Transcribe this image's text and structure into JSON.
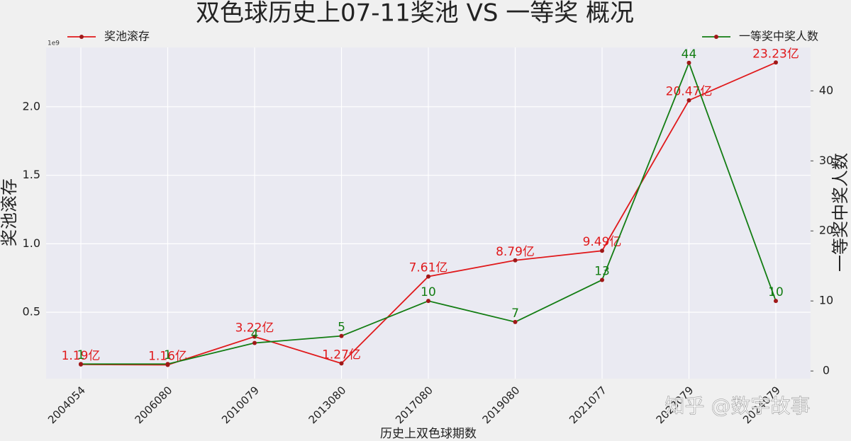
{
  "chart_data": {
    "type": "line",
    "title": "双色球历史上07-11奖池 VS 一等奖 概况",
    "xlabel": "历史上双色球期数",
    "ylabel": "奖池滚存",
    "y2label": "一等奖中奖人数",
    "y_offset_label": "1e9",
    "watermark": "知乎 @数字故事",
    "categories": [
      "2004054",
      "2006080",
      "2010079",
      "2013080",
      "2017080",
      "2019080",
      "2021077",
      "2023079",
      "2024079"
    ],
    "series": [
      {
        "name": "奖池滚存",
        "color": "#e0191b",
        "marker_color": "#a01818",
        "axis": "y",
        "values": [
          0.119,
          0.116,
          0.322,
          0.127,
          0.761,
          0.879,
          0.949,
          2.047,
          2.323
        ],
        "value_labels": [
          "1.19亿",
          "1.16亿",
          "3.22亿",
          "1.27亿",
          "7.61亿",
          "8.79亿",
          "9.49亿",
          "20.47亿",
          "23.23亿"
        ]
      },
      {
        "name": "一等奖中奖人数",
        "color": "#137d13",
        "marker_color": "#a01818",
        "axis": "y2",
        "values": [
          1,
          1,
          4,
          5,
          10,
          7,
          13,
          44,
          10
        ]
      }
    ],
    "ylim": [
      0.015,
      2.433
    ],
    "yticks": [
      0.5,
      {
        "value": 1,
        "label": "1.0"
      },
      1.5,
      {
        "value": 2,
        "label": "2.0"
      }
    ],
    "y2lim": [
      -1.1,
      46.2
    ],
    "y2ticks": [
      0,
      10,
      20,
      30,
      40
    ],
    "grid": true
  }
}
